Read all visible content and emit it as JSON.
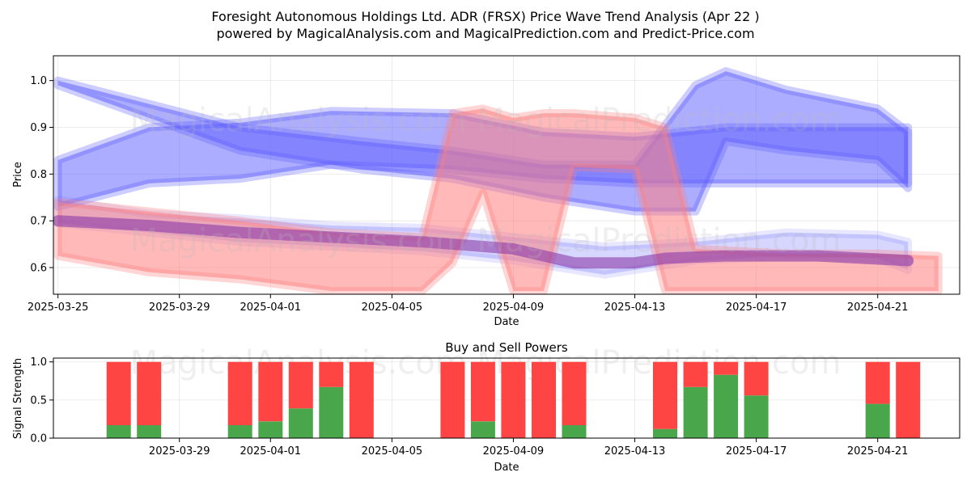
{
  "title": {
    "line1": "Foresight Autonomous Holdings Ltd. ADR (FRSX) Price Wave Trend Analysis (Apr 22 )",
    "line2": "powered by MagicalAnalysis.com and MagicalPrediction.com and Predict-Price.com"
  },
  "watermark": "MagicalAnalysis.com   MagicalPrediction.com",
  "colors": {
    "buy": "#4aa64a",
    "sell": "#ff4444",
    "wave_blue": "#5b5bff",
    "wave_red": "#ff7f7f"
  },
  "chart_data": [
    {
      "type": "area",
      "xlabel": "Date",
      "ylabel": "Price",
      "xticks": [
        "2025-03-25",
        "2025-03-29",
        "2025-04-01",
        "2025-04-05",
        "2025-04-09",
        "2025-04-13",
        "2025-04-17",
        "2025-04-21"
      ],
      "yticks": [
        "0.6",
        "0.7",
        "0.8",
        "0.9",
        "1.0"
      ],
      "xlim": [
        "2025-03-24.85",
        "2025-04-23.7"
      ],
      "ylim": [
        0.543,
        1.053
      ],
      "grid": true,
      "series": [
        {
          "style": "blue-band",
          "opacity": 0.5,
          "x": [
            "2025-03-25",
            "2025-03-28",
            "2025-03-31",
            "2025-04-04",
            "2025-04-07",
            "2025-04-10",
            "2025-04-13",
            "2025-04-15",
            "2025-04-16",
            "2025-04-18",
            "2025-04-21",
            "2025-04-22"
          ],
          "upper": [
            1.0,
            0.95,
            0.9,
            0.87,
            0.85,
            0.82,
            0.82,
            0.99,
            1.02,
            0.98,
            0.94,
            0.89
          ],
          "lower": [
            0.99,
            0.92,
            0.85,
            0.81,
            0.79,
            0.75,
            0.72,
            0.72,
            0.87,
            0.85,
            0.83,
            0.77
          ]
        },
        {
          "style": "blue-band",
          "opacity": 0.5,
          "x": [
            "2025-03-25",
            "2025-03-28",
            "2025-03-31",
            "2025-04-03",
            "2025-04-07",
            "2025-04-10",
            "2025-04-13",
            "2025-04-16",
            "2025-04-19",
            "2025-04-22"
          ],
          "upper": [
            0.83,
            0.9,
            0.91,
            0.935,
            0.93,
            0.89,
            0.88,
            0.9,
            0.9,
            0.9
          ],
          "lower": [
            0.73,
            0.78,
            0.79,
            0.82,
            0.81,
            0.79,
            0.78,
            0.78,
            0.78,
            0.78
          ]
        },
        {
          "style": "blue-band",
          "opacity": 0.25,
          "x": [
            "2025-03-25",
            "2025-03-28",
            "2025-03-31",
            "2025-04-03",
            "2025-04-06",
            "2025-04-09",
            "2025-04-12",
            "2025-04-15",
            "2025-04-18",
            "2025-04-21",
            "2025-04-22"
          ],
          "upper": [
            0.745,
            0.715,
            0.705,
            0.69,
            0.685,
            0.665,
            0.645,
            0.655,
            0.675,
            0.67,
            0.655
          ],
          "lower": [
            0.695,
            0.675,
            0.655,
            0.645,
            0.635,
            0.615,
            0.585,
            0.615,
            0.625,
            0.62,
            0.595
          ]
        },
        {
          "style": "red-band",
          "opacity": 0.55,
          "x": [
            "2025-03-25",
            "2025-03-28",
            "2025-03-31",
            "2025-04-03",
            "2025-04-06",
            "2025-04-07",
            "2025-04-08",
            "2025-04-09",
            "2025-04-10",
            "2025-04-11",
            "2025-04-13",
            "2025-04-14",
            "2025-04-15",
            "2025-04-18",
            "2025-04-21",
            "2025-04-23"
          ],
          "upper": [
            0.74,
            0.72,
            0.7,
            0.675,
            0.665,
            0.93,
            0.94,
            0.92,
            0.93,
            0.93,
            0.92,
            0.9,
            0.64,
            0.63,
            0.63,
            0.625
          ],
          "lower": [
            0.625,
            0.59,
            0.575,
            0.55,
            0.55,
            0.61,
            0.76,
            0.55,
            0.55,
            0.815,
            0.81,
            0.55,
            0.55,
            0.55,
            0.55,
            0.55
          ]
        },
        {
          "style": "purple-line",
          "opacity": 0.6,
          "x": [
            "2025-03-25",
            "2025-03-28",
            "2025-03-31",
            "2025-04-03",
            "2025-04-06",
            "2025-04-09",
            "2025-04-11",
            "2025-04-13",
            "2025-04-14",
            "2025-04-16",
            "2025-04-19",
            "2025-04-22"
          ],
          "y": [
            0.7,
            0.69,
            0.675,
            0.665,
            0.655,
            0.64,
            0.61,
            0.61,
            0.62,
            0.625,
            0.625,
            0.615
          ]
        }
      ]
    },
    {
      "type": "bar",
      "title": "Buy and Sell Powers",
      "xlabel": "Date",
      "ylabel": "Signal Strength",
      "xticks": [
        "2025-03-29",
        "2025-04-01",
        "2025-04-05",
        "2025-04-09",
        "2025-04-13",
        "2025-04-17",
        "2025-04-21"
      ],
      "yticks": [
        "0.0",
        "0.5",
        "1.0"
      ],
      "ylim": [
        0,
        1.05
      ],
      "stacked": true,
      "categories": [
        "2025-03-27",
        "2025-03-28",
        "2025-03-31",
        "2025-04-01",
        "2025-04-02",
        "2025-04-03",
        "2025-04-04",
        "2025-04-07",
        "2025-04-08",
        "2025-04-09",
        "2025-04-10",
        "2025-04-11",
        "2025-04-14",
        "2025-04-15",
        "2025-04-16",
        "2025-04-17",
        "2025-04-21",
        "2025-04-22"
      ],
      "series": [
        {
          "name": "Buy",
          "values": [
            0.17,
            0.17,
            0.17,
            0.22,
            0.39,
            0.67,
            0.0,
            0.0,
            0.22,
            0.0,
            0.0,
            0.17,
            0.12,
            0.67,
            0.83,
            0.56,
            0.45,
            0.0
          ]
        },
        {
          "name": "Sell",
          "values": [
            0.83,
            0.83,
            0.83,
            0.78,
            0.61,
            0.33,
            1.0,
            1.0,
            0.78,
            1.0,
            1.0,
            0.83,
            0.88,
            0.33,
            0.17,
            0.44,
            0.55,
            1.0
          ]
        }
      ]
    }
  ]
}
